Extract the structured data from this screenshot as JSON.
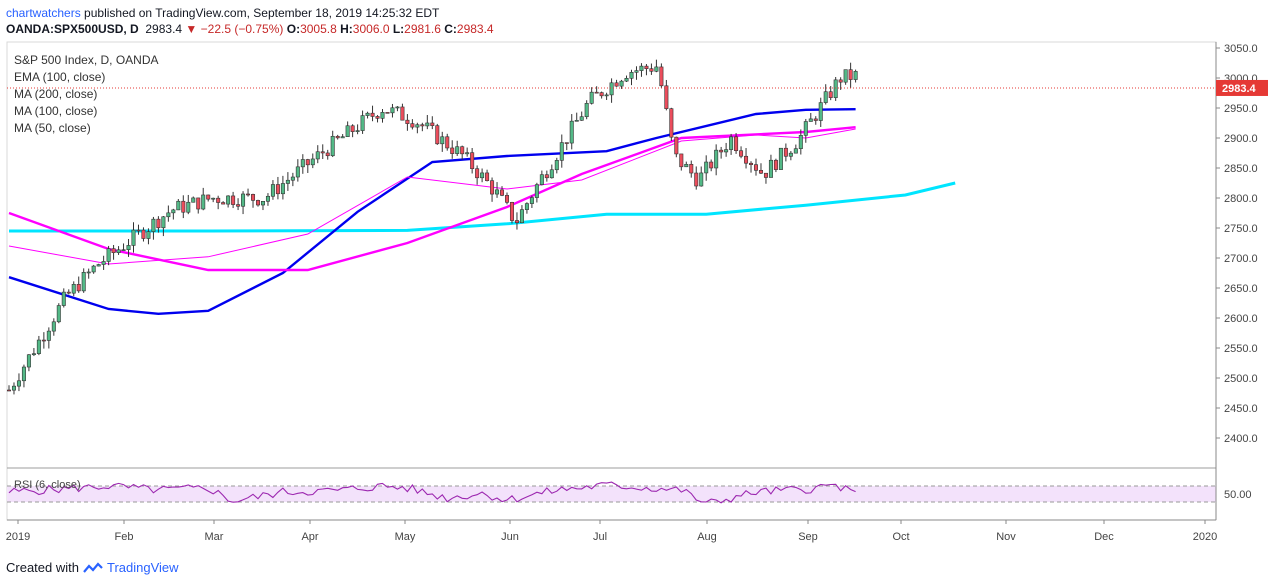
{
  "header": {
    "author": "chartwatchers",
    "published_text": "published on TradingView.com, September 18, 2019 14:25:32 EDT"
  },
  "ohlc": {
    "symbol": "OANDA:SPX500USD, D",
    "last": "2983.4",
    "change": "−22.5 (−0.75%)",
    "o_label": "O:",
    "o": "3005.8",
    "h_label": "H:",
    "h": "3006.0",
    "l_label": "L:",
    "l": "2981.6",
    "c_label": "C:",
    "c": "2983.4"
  },
  "legend": {
    "title": "S&P 500 Index, D, OANDA",
    "items": [
      "EMA (100, close)",
      "MA (200, close)",
      "MA (100, close)",
      "MA (50, close)"
    ]
  },
  "rsi_label": "RSI (6, close)",
  "footer": {
    "created_with": "Created with",
    "brand": "TradingView"
  },
  "colors": {
    "up": "#53b987",
    "down": "#eb4d5c",
    "ema100": "#ff00ff",
    "ma200": "#00e5ff",
    "ma100": "#ff00ff",
    "ma50": "#0000ee",
    "rsi": "#9c27b0",
    "rsi_band": "#f3e2fb",
    "price_tag": "#e53935"
  },
  "chart_data": {
    "type": "candlestick",
    "price_axis_ticks": [
      "3050.0",
      "3000.0",
      "2950.0",
      "2900.0",
      "2850.0",
      "2800.0",
      "2750.0",
      "2700.0",
      "2650.0",
      "2600.0",
      "2550.0",
      "2500.0",
      "2450.0",
      "2400.0"
    ],
    "price_axis_range": [
      2350,
      3060
    ],
    "last_price_label": "2983.4",
    "rsi_axis_ticks": [
      "50.00"
    ],
    "rsi_levels": [
      70,
      30
    ],
    "x_tick_labels": [
      "2019",
      "Feb",
      "Mar",
      "Apr",
      "May",
      "Jun",
      "Jul",
      "Aug",
      "Sep",
      "Oct",
      "Nov",
      "Dec",
      "2020"
    ],
    "monthly_closes": {
      "months": [
        "Jan",
        "Feb",
        "Mar",
        "Apr",
        "May",
        "Jun",
        "Jul",
        "Aug",
        "Sep"
      ],
      "close_approx": [
        2704,
        2784,
        2834,
        2946,
        2752,
        2942,
        2980,
        2926,
        2983
      ]
    },
    "ma200": [
      [
        0,
        2745
      ],
      [
        40,
        2745
      ],
      [
        80,
        2746
      ],
      [
        100,
        2757
      ],
      [
        120,
        2773
      ],
      [
        140,
        2773
      ],
      [
        160,
        2788
      ],
      [
        180,
        2805
      ],
      [
        190,
        2825
      ]
    ],
    "ma100": [
      [
        0,
        2668
      ],
      [
        20,
        2615
      ],
      [
        30,
        2607
      ],
      [
        40,
        2612
      ],
      [
        55,
        2675
      ],
      [
        70,
        2777
      ],
      [
        85,
        2860
      ],
      [
        100,
        2870
      ],
      [
        120,
        2878
      ],
      [
        130,
        2900
      ],
      [
        150,
        2940
      ],
      [
        160,
        2947
      ],
      [
        170,
        2948
      ]
    ],
    "ema100": [
      [
        0,
        2775
      ],
      [
        20,
        2715
      ],
      [
        40,
        2680
      ],
      [
        60,
        2680
      ],
      [
        80,
        2725
      ],
      [
        100,
        2785
      ],
      [
        115,
        2840
      ],
      [
        135,
        2900
      ],
      [
        160,
        2910
      ],
      [
        170,
        2918
      ]
    ],
    "ma50": [
      [
        0,
        2720
      ],
      [
        20,
        2690
      ],
      [
        40,
        2702
      ],
      [
        60,
        2740
      ],
      [
        80,
        2835
      ],
      [
        100,
        2815
      ],
      [
        115,
        2830
      ],
      [
        135,
        2895
      ],
      [
        150,
        2905
      ],
      [
        160,
        2900
      ],
      [
        170,
        2915
      ]
    ],
    "rsi_points": [
      [
        0,
        55
      ],
      [
        10,
        62
      ],
      [
        20,
        70
      ],
      [
        30,
        60
      ],
      [
        40,
        65
      ],
      [
        45,
        32
      ],
      [
        55,
        55
      ],
      [
        65,
        58
      ],
      [
        75,
        70
      ],
      [
        80,
        65
      ],
      [
        88,
        40
      ],
      [
        95,
        52
      ],
      [
        100,
        35
      ],
      [
        110,
        60
      ],
      [
        120,
        72
      ],
      [
        135,
        60
      ],
      [
        140,
        25
      ],
      [
        150,
        55
      ],
      [
        160,
        62
      ],
      [
        166,
        72
      ],
      [
        170,
        48
      ]
    ]
  }
}
